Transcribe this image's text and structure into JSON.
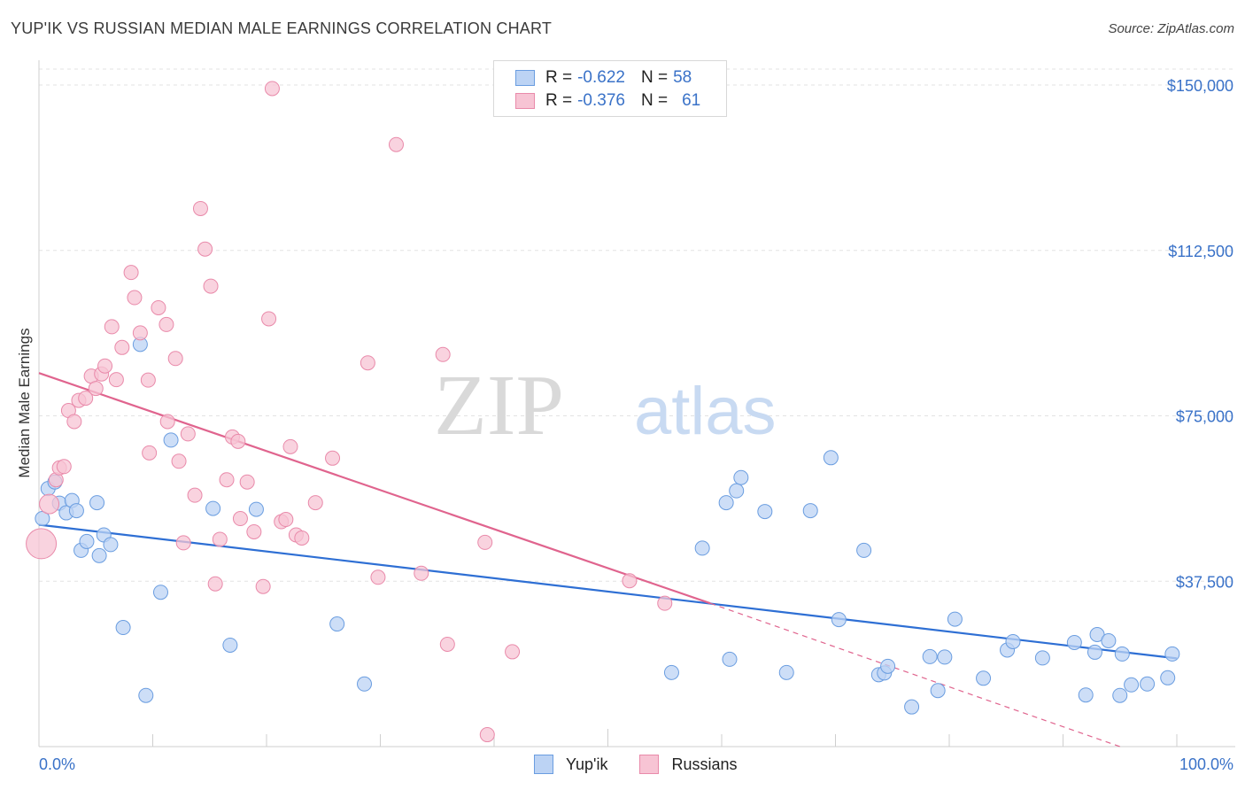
{
  "title": "YUP'IK VS RUSSIAN MEDIAN MALE EARNINGS CORRELATION CHART",
  "source": "Source: ZipAtlas.com",
  "watermark": {
    "zip": "ZIP",
    "atlas": "atlas"
  },
  "colors": {
    "yupik": "#6a9de0",
    "yupik_fill": "#bcd3f4",
    "yupik_line": "#2e6fd4",
    "russians": "#e98aaa",
    "russians_fill": "#f7c4d4",
    "russians_line": "#e0648e",
    "axis_text": "#3a72c8"
  },
  "legend": {
    "rows": [
      {
        "r_label": "R = ",
        "r_value": "-0.622",
        "n_label": "N = ",
        "n_value": "58"
      },
      {
        "r_label": "R = ",
        "r_value": "-0.376",
        "n_label": "N = ",
        "n_value": "61"
      }
    ]
  },
  "bottom_legend": [
    "Yup'ik",
    "Russians"
  ],
  "chart_data": {
    "type": "scatter",
    "title": "YUP'IK VS RUSSIAN MEDIAN MALE EARNINGS CORRELATION CHART",
    "xlabel": "",
    "ylabel": "Median Male Earnings",
    "xlim": [
      0,
      100
    ],
    "ylim": [
      0,
      150000
    ],
    "x_tick_labels": [
      "0.0%",
      "100.0%"
    ],
    "y_ticks": [
      37500,
      75000,
      112500,
      150000
    ],
    "y_tick_labels": [
      "$37,500",
      "$75,000",
      "$112,500",
      "$150,000"
    ],
    "grid": true,
    "legend_position": "top-center",
    "series": [
      {
        "name": "Yup'ik",
        "r": -0.622,
        "n": 58,
        "trend": {
          "x0": 0,
          "y0": 50300,
          "x1": 100,
          "y1": 20000
        },
        "points": [
          [
            0.3,
            51700
          ],
          [
            0.8,
            58500
          ],
          [
            1.4,
            60000
          ],
          [
            1.8,
            55200
          ],
          [
            2.4,
            53000
          ],
          [
            2.9,
            55800
          ],
          [
            3.3,
            53500
          ],
          [
            3.7,
            44500
          ],
          [
            4.2,
            46500
          ],
          [
            5.1,
            55300
          ],
          [
            5.3,
            43300
          ],
          [
            5.7,
            48000
          ],
          [
            6.3,
            45800
          ],
          [
            7.4,
            27000
          ],
          [
            8.9,
            91200
          ],
          [
            9.4,
            11600
          ],
          [
            10.7,
            35000
          ],
          [
            11.6,
            69500
          ],
          [
            15.3,
            54000
          ],
          [
            16.8,
            23000
          ],
          [
            19.1,
            53800
          ],
          [
            26.2,
            27800
          ],
          [
            28.6,
            14200
          ],
          [
            55.6,
            16800
          ],
          [
            58.3,
            45000
          ],
          [
            60.4,
            55300
          ],
          [
            60.7,
            19800
          ],
          [
            61.3,
            58000
          ],
          [
            61.7,
            61000
          ],
          [
            63.8,
            53300
          ],
          [
            65.7,
            16800
          ],
          [
            67.8,
            53500
          ],
          [
            69.6,
            65500
          ],
          [
            70.3,
            28800
          ],
          [
            72.5,
            44500
          ],
          [
            73.8,
            16300
          ],
          [
            74.3,
            16700
          ],
          [
            74.6,
            18200
          ],
          [
            76.7,
            9000
          ],
          [
            78.3,
            20400
          ],
          [
            79.0,
            12700
          ],
          [
            79.6,
            20300
          ],
          [
            80.5,
            28900
          ],
          [
            83.0,
            15500
          ],
          [
            85.1,
            21900
          ],
          [
            85.6,
            23800
          ],
          [
            88.2,
            20100
          ],
          [
            91.0,
            23600
          ],
          [
            92.0,
            11700
          ],
          [
            92.8,
            21400
          ],
          [
            93.0,
            25400
          ],
          [
            94.0,
            24000
          ],
          [
            95.0,
            11600
          ],
          [
            95.2,
            21000
          ],
          [
            96.0,
            14000
          ],
          [
            97.4,
            14200
          ],
          [
            99.2,
            15600
          ],
          [
            99.6,
            21000
          ]
        ]
      },
      {
        "name": "Russians",
        "r": -0.376,
        "n": 61,
        "trend": {
          "x0": 0,
          "y0": 84700,
          "x1": 59,
          "y1": 32500,
          "dash_x1": 95,
          "dash_y1": 0
        },
        "points": [
          [
            0.2,
            46000
          ],
          [
            0.9,
            55000
          ],
          [
            1.5,
            60500
          ],
          [
            1.8,
            63200
          ],
          [
            2.2,
            63500
          ],
          [
            2.6,
            76200
          ],
          [
            3.1,
            73700
          ],
          [
            3.5,
            78500
          ],
          [
            4.1,
            79000
          ],
          [
            4.6,
            84000
          ],
          [
            5.0,
            81200
          ],
          [
            5.5,
            84500
          ],
          [
            5.8,
            86300
          ],
          [
            6.4,
            95200
          ],
          [
            6.8,
            83200
          ],
          [
            7.3,
            90500
          ],
          [
            8.1,
            107500
          ],
          [
            8.4,
            101800
          ],
          [
            8.9,
            93800
          ],
          [
            9.6,
            83100
          ],
          [
            9.7,
            66600
          ],
          [
            10.5,
            99500
          ],
          [
            11.2,
            95700
          ],
          [
            11.3,
            73700
          ],
          [
            12.0,
            88000
          ],
          [
            12.3,
            64700
          ],
          [
            12.7,
            46200
          ],
          [
            13.1,
            70900
          ],
          [
            13.7,
            57000
          ],
          [
            14.2,
            122000
          ],
          [
            14.6,
            112800
          ],
          [
            15.1,
            104400
          ],
          [
            15.5,
            36900
          ],
          [
            15.9,
            47000
          ],
          [
            16.5,
            60500
          ],
          [
            17.0,
            70200
          ],
          [
            17.5,
            69200
          ],
          [
            17.7,
            51700
          ],
          [
            18.3,
            60000
          ],
          [
            18.9,
            48700
          ],
          [
            19.7,
            36300
          ],
          [
            20.2,
            97000
          ],
          [
            20.5,
            149200
          ],
          [
            21.3,
            51000
          ],
          [
            21.7,
            51500
          ],
          [
            22.1,
            68000
          ],
          [
            22.6,
            48000
          ],
          [
            23.1,
            47300
          ],
          [
            24.3,
            55300
          ],
          [
            25.8,
            65400
          ],
          [
            28.9,
            87000
          ],
          [
            29.8,
            38400
          ],
          [
            31.4,
            136500
          ],
          [
            33.6,
            39300
          ],
          [
            35.5,
            88900
          ],
          [
            35.9,
            23200
          ],
          [
            39.2,
            46300
          ],
          [
            39.4,
            2700
          ],
          [
            41.6,
            21500
          ],
          [
            51.9,
            37600
          ],
          [
            55.0,
            32500
          ]
        ]
      }
    ]
  }
}
